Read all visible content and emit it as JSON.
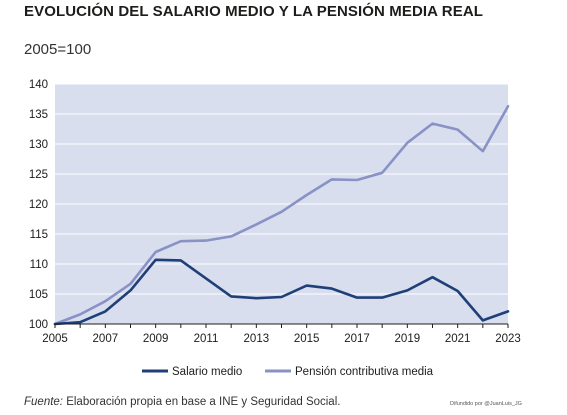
{
  "header": {
    "title": "EVOLUCIÓN DEL SALARIO MEDIO Y LA PENSIÓN MEDIA REAL",
    "subtitle": "2005=100"
  },
  "footer": {
    "source_label": "Fuente:",
    "source_text": "Elaboración propia en base a INE y Seguridad Social.",
    "credit": "Difundido por @JuanLuis_JG"
  },
  "colors": {
    "plot_background": "#d9deef",
    "salario": "#1f3f78",
    "pension": "#8892c4",
    "grid": "#ffffff",
    "axis": "#1d1d1b"
  },
  "chart_data": {
    "type": "line",
    "title": "EVOLUCIÓN DEL SALARIO MEDIO Y LA PENSIÓN MEDIA REAL",
    "subtitle": "2005=100",
    "xlabel": "",
    "ylabel": "",
    "x": [
      2005,
      2006,
      2007,
      2008,
      2009,
      2010,
      2011,
      2012,
      2013,
      2014,
      2015,
      2016,
      2017,
      2018,
      2019,
      2020,
      2021,
      2022,
      2023
    ],
    "xlim": [
      2005,
      2023
    ],
    "ylim": [
      100,
      140
    ],
    "xticks": [
      "2005",
      "2007",
      "2009",
      "2011",
      "2013",
      "2015",
      "2017",
      "2019",
      "2021",
      "2023"
    ],
    "yticks": [
      "100",
      "105",
      "110",
      "115",
      "120",
      "125",
      "130",
      "135",
      "140"
    ],
    "grid": true,
    "legend_position": "bottom",
    "series": [
      {
        "name": "Salario medio",
        "color": "#1f3f78",
        "values": [
          100,
          100.3,
          102.1,
          105.6,
          110.7,
          110.6,
          107.6,
          104.6,
          104.3,
          104.5,
          106.4,
          105.9,
          104.4,
          104.4,
          105.6,
          107.8,
          105.5,
          100.6,
          102.1
        ]
      },
      {
        "name": "Pensión contributiva media",
        "color": "#8892c4",
        "values": [
          100,
          101.6,
          103.8,
          106.7,
          112.0,
          113.8,
          113.9,
          114.6,
          116.6,
          118.7,
          121.5,
          124.1,
          124.0,
          125.2,
          130.2,
          133.4,
          132.4,
          128.8,
          136.3
        ]
      }
    ]
  }
}
